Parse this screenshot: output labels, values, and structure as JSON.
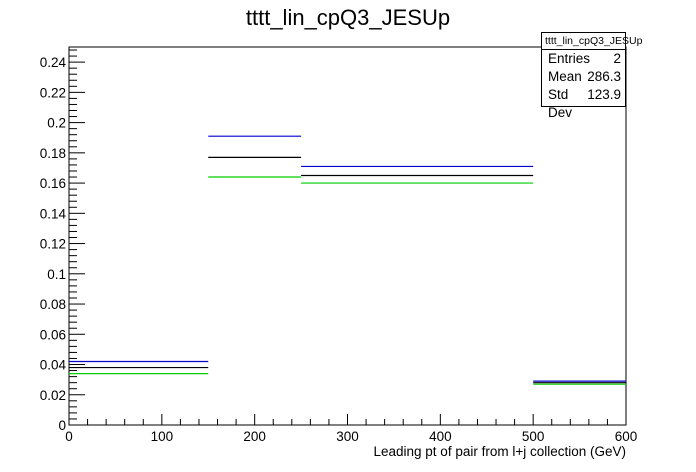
{
  "chart_data": {
    "type": "step",
    "title": "tttt_lin_cpQ3_JESUp",
    "xlabel": "Leading pt of pair from l+j collection (GeV)",
    "ylabel": "",
    "xlim": [
      0,
      600
    ],
    "ylim": [
      0,
      0.25
    ],
    "x_ticks": [
      "0",
      "100",
      "200",
      "300",
      "400",
      "500",
      "600"
    ],
    "y_ticks": [
      "0",
      "0.02",
      "0.04",
      "0.06",
      "0.08",
      "0.1",
      "0.12",
      "0.14",
      "0.16",
      "0.18",
      "0.2",
      "0.22",
      "0.24"
    ],
    "bin_edges": [
      0,
      150,
      250,
      500,
      600
    ],
    "grid": false,
    "series": [
      {
        "color": "#0000cc",
        "values": [
          0.042,
          0.191,
          0.171,
          0.029
        ]
      },
      {
        "color": "#000000",
        "values": [
          0.038,
          0.177,
          0.165,
          0.028
        ]
      },
      {
        "color": "#00cc00",
        "values": [
          0.034,
          0.164,
          0.16,
          0.027
        ]
      }
    ]
  },
  "stats": {
    "title": "tttt_lin_cpQ3_JESUp",
    "rows": [
      {
        "label": "Entries",
        "value": "2"
      },
      {
        "label": "Mean",
        "value": "286.3"
      },
      {
        "label": "Std Dev",
        "value": "123.9"
      }
    ]
  }
}
